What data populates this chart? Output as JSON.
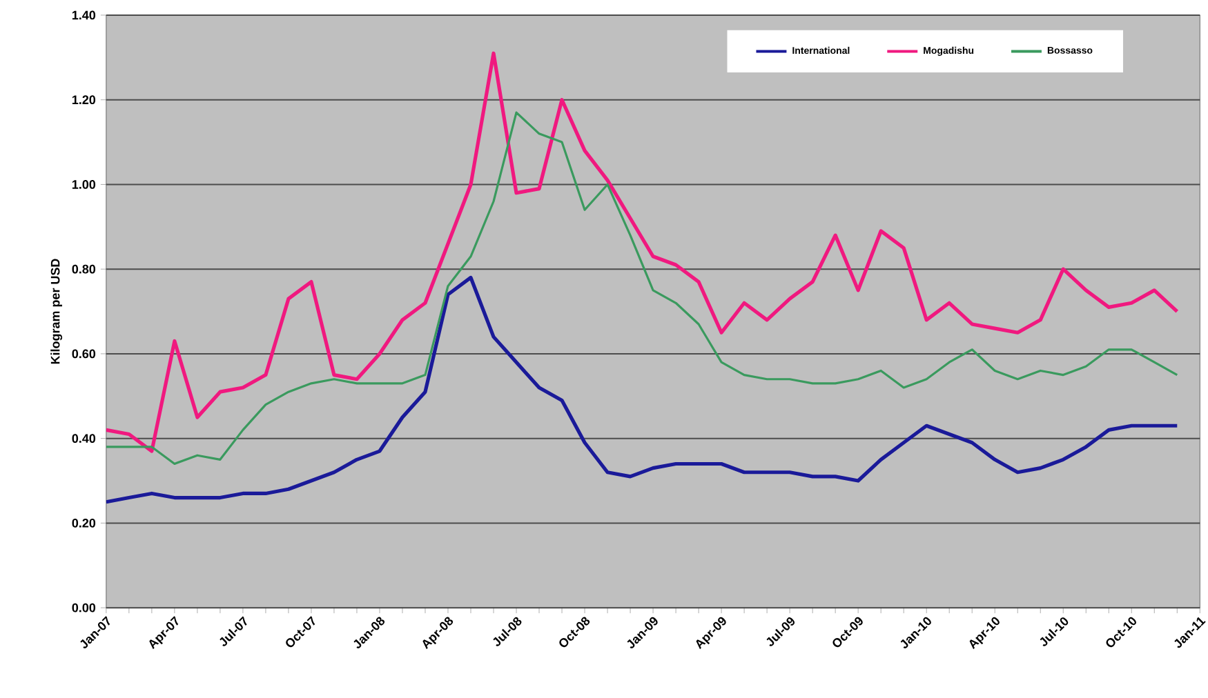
{
  "chart_data": {
    "type": "line",
    "ylabel": "Kilogram per USD",
    "x": [
      "2007-01",
      "2007-02",
      "2007-03",
      "2007-04",
      "2007-05",
      "2007-06",
      "2007-07",
      "2007-08",
      "2007-09",
      "2007-10",
      "2007-11",
      "2007-12",
      "2008-01",
      "2008-02",
      "2008-03",
      "2008-04",
      "2008-05",
      "2008-06",
      "2008-07",
      "2008-08",
      "2008-09",
      "2008-10",
      "2008-11",
      "2008-12",
      "2009-01",
      "2009-02",
      "2009-03",
      "2009-04",
      "2009-05",
      "2009-06",
      "2009-07",
      "2009-08",
      "2009-09",
      "2009-10",
      "2009-11",
      "2009-12",
      "2010-01",
      "2010-02",
      "2010-03",
      "2010-04",
      "2010-05",
      "2010-06",
      "2010-07",
      "2010-08",
      "2010-09",
      "2010-10",
      "2010-11",
      "2010-12"
    ],
    "series": [
      {
        "name": "International",
        "color": "#1a1a99",
        "values": [
          0.25,
          0.26,
          0.27,
          0.26,
          0.26,
          0.26,
          0.27,
          0.27,
          0.28,
          0.3,
          0.32,
          0.35,
          0.37,
          0.45,
          0.51,
          0.74,
          0.78,
          0.64,
          0.58,
          0.52,
          0.49,
          0.39,
          0.32,
          0.31,
          0.33,
          0.34,
          0.34,
          0.34,
          0.32,
          0.32,
          0.32,
          0.31,
          0.31,
          0.3,
          0.35,
          0.39,
          0.43,
          0.41,
          0.39,
          0.35,
          0.32,
          0.33,
          0.35,
          0.38,
          0.42,
          0.43,
          0.43,
          0.43
        ]
      },
      {
        "name": "Mogadishu",
        "color": "#f0197f",
        "values": [
          0.42,
          0.41,
          0.37,
          0.63,
          0.45,
          0.51,
          0.52,
          0.55,
          0.73,
          0.77,
          0.55,
          0.54,
          0.6,
          0.68,
          0.72,
          0.86,
          1.0,
          1.31,
          0.98,
          0.99,
          1.2,
          1.08,
          1.01,
          0.92,
          0.83,
          0.81,
          0.77,
          0.65,
          0.72,
          0.68,
          0.73,
          0.77,
          0.88,
          0.75,
          0.89,
          0.85,
          0.68,
          0.72,
          0.67,
          0.66,
          0.65,
          0.68,
          0.8,
          0.75,
          0.71,
          0.72,
          0.75,
          0.7
        ]
      },
      {
        "name": "Bossasso",
        "color": "#3a9a5e",
        "values": [
          0.38,
          0.38,
          0.38,
          0.34,
          0.36,
          0.35,
          0.42,
          0.48,
          0.51,
          0.53,
          0.54,
          0.53,
          0.53,
          0.53,
          0.55,
          0.76,
          0.83,
          0.96,
          1.17,
          1.12,
          1.1,
          0.94,
          1.0,
          0.88,
          0.75,
          0.72,
          0.67,
          0.58,
          0.55,
          0.54,
          0.54,
          0.53,
          0.53,
          0.54,
          0.56,
          0.52,
          0.54,
          0.58,
          0.61,
          0.56,
          0.54,
          0.56,
          0.55,
          0.57,
          0.61,
          0.61,
          0.58,
          0.55
        ]
      }
    ],
    "xlim": [
      "2007-01",
      "2011-01"
    ],
    "xticks": [
      {
        "value": "2007-01",
        "label": "Jan-07"
      },
      {
        "value": "2007-04",
        "label": "Apr-07"
      },
      {
        "value": "2007-07",
        "label": "Jul-07"
      },
      {
        "value": "2007-10",
        "label": "Oct-07"
      },
      {
        "value": "2008-01",
        "label": "Jan-08"
      },
      {
        "value": "2008-04",
        "label": "Apr-08"
      },
      {
        "value": "2008-07",
        "label": "Jul-08"
      },
      {
        "value": "2008-10",
        "label": "Oct-08"
      },
      {
        "value": "2009-01",
        "label": "Jan-09"
      },
      {
        "value": "2009-04",
        "label": "Apr-09"
      },
      {
        "value": "2009-07",
        "label": "Jul-09"
      },
      {
        "value": "2009-10",
        "label": "Oct-09"
      },
      {
        "value": "2010-01",
        "label": "Jan-10"
      },
      {
        "value": "2010-04",
        "label": "Apr-10"
      },
      {
        "value": "2010-07",
        "label": "Jul-10"
      },
      {
        "value": "2010-10",
        "label": "Oct-10"
      },
      {
        "value": "2011-01",
        "label": "Jan-11"
      }
    ],
    "ylim": [
      0,
      1.4
    ],
    "yticks": [
      {
        "value": 0,
        "label": "0.00"
      },
      {
        "value": 0.2,
        "label": "0.20"
      },
      {
        "value": 0.4,
        "label": "0.40"
      },
      {
        "value": 0.6,
        "label": "0.60"
      },
      {
        "value": 0.8,
        "label": "0.80"
      },
      {
        "value": 1.0,
        "label": "1.00"
      },
      {
        "value": 1.2,
        "label": "1.20"
      },
      {
        "value": 1.4,
        "label": "1.40"
      }
    ],
    "grid": "y",
    "legend": "top right",
    "marker": "none",
    "line_style": "solid"
  }
}
